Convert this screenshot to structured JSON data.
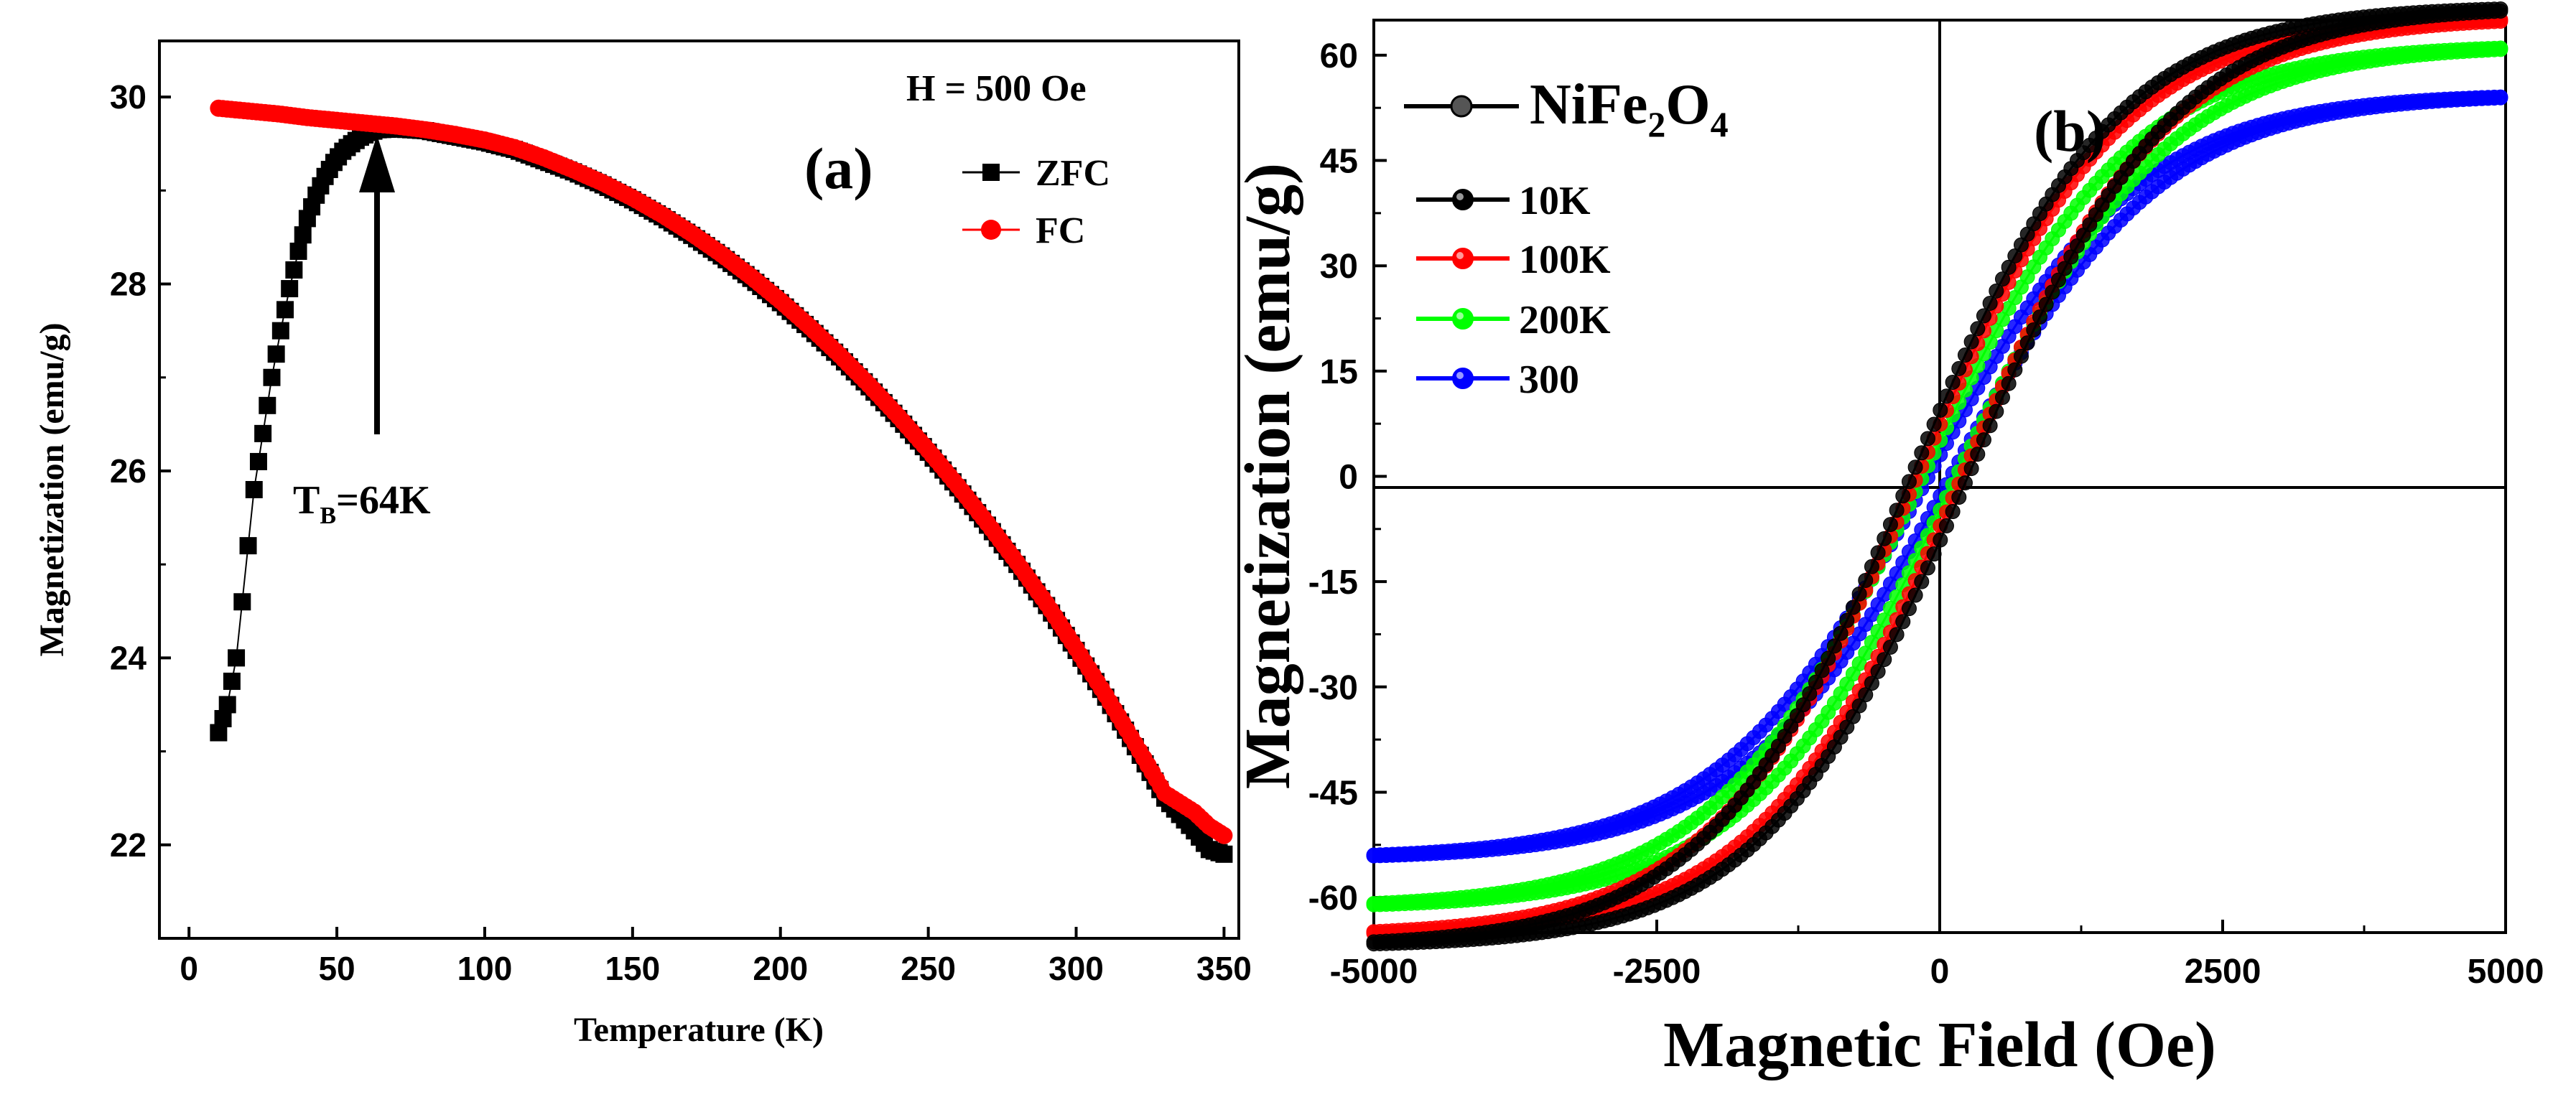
{
  "chart_data": [
    {
      "id": "a",
      "type": "scatter",
      "panel_label": "(a)",
      "xlabel": "Temperature (K)",
      "ylabel": "Magnetization (emu/g)",
      "xlim": [
        -10,
        355
      ],
      "ylim": [
        21,
        30.6
      ],
      "xticks": [
        0,
        50,
        100,
        150,
        200,
        250,
        300,
        350
      ],
      "yticks": [
        22,
        24,
        26,
        28,
        30
      ],
      "field_note": "H = 500 Oe",
      "legend": {
        "placement": "top-right"
      },
      "series": [
        {
          "name": "ZFC",
          "color": "#000000",
          "marker": "square",
          "x": [
            10,
            13,
            16,
            18,
            20,
            22,
            25,
            28,
            31,
            34,
            37,
            40,
            43,
            46,
            49,
            52,
            55,
            58,
            61,
            64,
            70,
            80,
            90,
            100,
            110,
            120,
            130,
            140,
            150,
            160,
            170,
            180,
            190,
            200,
            210,
            220,
            230,
            240,
            250,
            260,
            270,
            280,
            290,
            300,
            310,
            320,
            330,
            340,
            345,
            350
          ],
          "y": [
            23.2,
            23.5,
            24.0,
            24.6,
            25.2,
            25.8,
            26.4,
            27.0,
            27.5,
            27.95,
            28.35,
            28.7,
            28.95,
            29.15,
            29.3,
            29.42,
            29.5,
            29.57,
            29.62,
            29.65,
            29.66,
            29.64,
            29.58,
            29.52,
            29.44,
            29.32,
            29.2,
            29.06,
            28.9,
            28.72,
            28.52,
            28.3,
            28.06,
            27.8,
            27.52,
            27.22,
            26.9,
            26.56,
            26.2,
            25.82,
            25.42,
            25.0,
            24.56,
            24.08,
            23.58,
            23.05,
            22.5,
            22.15,
            21.95,
            21.9
          ]
        },
        {
          "name": "FC",
          "color": "#ff0000",
          "marker": "circle",
          "x": [
            10,
            20,
            30,
            40,
            50,
            60,
            70,
            80,
            90,
            100,
            110,
            120,
            130,
            140,
            150,
            160,
            170,
            180,
            190,
            200,
            210,
            220,
            230,
            240,
            250,
            260,
            270,
            280,
            290,
            300,
            310,
            320,
            330,
            340,
            345,
            350
          ],
          "y": [
            29.88,
            29.85,
            29.82,
            29.78,
            29.75,
            29.72,
            29.69,
            29.65,
            29.6,
            29.54,
            29.46,
            29.35,
            29.22,
            29.08,
            28.92,
            28.74,
            28.54,
            28.32,
            28.08,
            27.82,
            27.54,
            27.24,
            26.92,
            26.58,
            26.22,
            25.84,
            25.44,
            25.02,
            24.58,
            24.1,
            23.6,
            23.08,
            22.55,
            22.35,
            22.2,
            22.1
          ]
        }
      ],
      "annotations": [
        {
          "text": "T",
          "sub": "B",
          "suffix": "=64K",
          "x": 80,
          "y": 25.6,
          "arrow_from": [
            64,
            26.4
          ],
          "arrow_to": [
            64,
            29.65
          ]
        }
      ]
    },
    {
      "id": "b",
      "type": "scatter",
      "panel_label": "(b)",
      "xlabel": "Magnetic Field (Oe)",
      "ylabel": "Magnetization (emu/g)",
      "xlim": [
        -5000,
        5000
      ],
      "ylim": [
        -65,
        65
      ],
      "xticks": [
        -5000,
        -2500,
        0,
        2500,
        5000
      ],
      "yticks": [
        -60,
        -45,
        -30,
        -15,
        0,
        15,
        30,
        45,
        60
      ],
      "legend_title": {
        "prefix": "NiFe",
        "sub1": "2",
        "mid": "O",
        "sub2": "4"
      },
      "legend": {
        "placement": "top-left"
      },
      "series": [
        {
          "name": "10K",
          "color": "#000000",
          "Ms": 67.0,
          "Hc": 250,
          "a": 1800
        },
        {
          "name": "100K",
          "color": "#ff0000",
          "Ms": 65.5,
          "Hc": 200,
          "a": 1800
        },
        {
          "name": "200K",
          "color": "#00ff00",
          "Ms": 61.5,
          "Hc": 150,
          "a": 1850
        },
        {
          "name": "300",
          "color": "#0000ff",
          "Ms": 54.5,
          "Hc": 100,
          "a": 1850
        }
      ]
    }
  ]
}
